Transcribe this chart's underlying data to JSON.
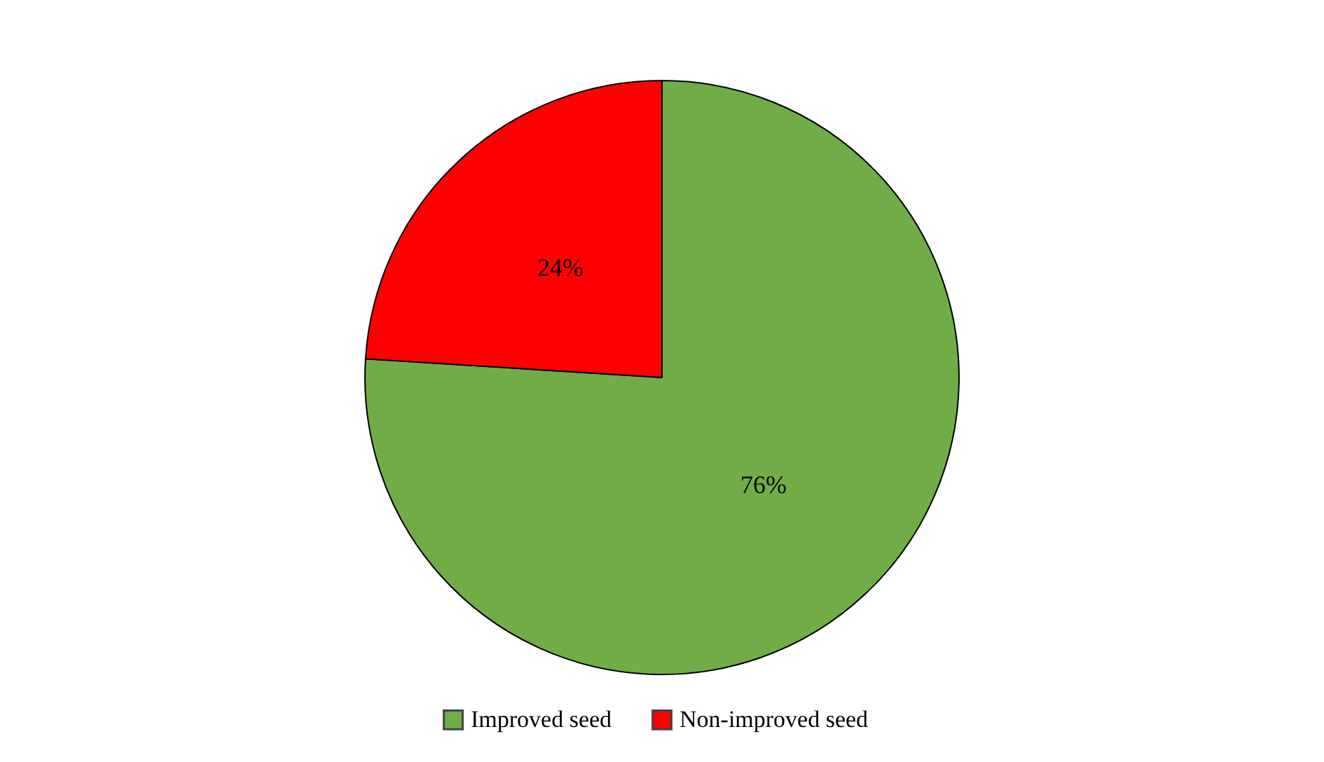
{
  "chart_data": {
    "type": "pie",
    "categories": [
      "Improved seed",
      "Non-improved seed"
    ],
    "values": [
      76,
      24
    ],
    "colors": [
      "#70ad47",
      "#ff0000"
    ],
    "value_labels": [
      "76%",
      "24%"
    ],
    "legend": "bottom"
  }
}
